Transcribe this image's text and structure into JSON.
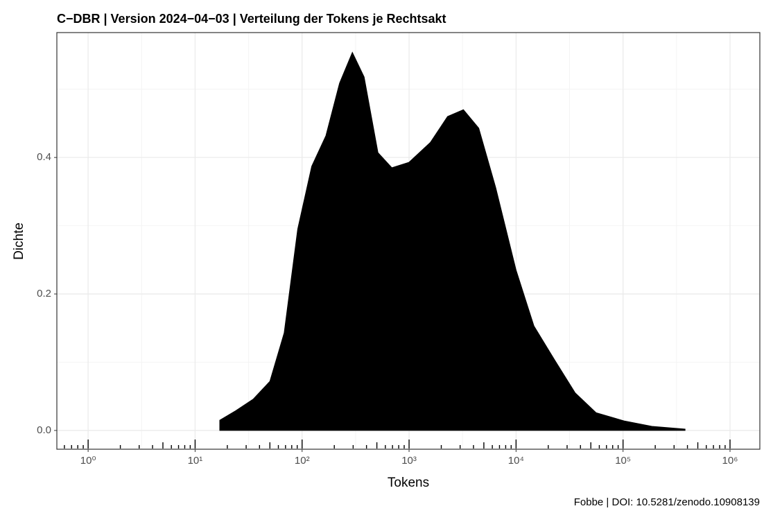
{
  "chart_data": {
    "type": "density",
    "title": "C−DBR | Version 2024−04−03 | Verteilung der Tokens je Rechtsakt",
    "x_label": "Tokens",
    "y_label": "Dichte",
    "caption": "Fobbe | DOI: 10.5281/zenodo.10908139",
    "x": [
      17,
      24,
      35,
      50,
      68,
      91,
      123,
      167,
      224,
      295,
      380,
      512,
      690,
      1000,
      1580,
      2290,
      3220,
      4480,
      6450,
      10000,
      14700,
      23000,
      35700,
      56000,
      102000,
      186000,
      380000
    ],
    "values": [
      0.015,
      0.029,
      0.046,
      0.072,
      0.143,
      0.295,
      0.387,
      0.432,
      0.509,
      0.554,
      0.518,
      0.407,
      0.385,
      0.393,
      0.422,
      0.46,
      0.47,
      0.443,
      0.356,
      0.235,
      0.153,
      0.103,
      0.055,
      0.026,
      0.014,
      0.006,
      0.002
    ],
    "color": "#000000",
    "x_log": true,
    "xlim": [
      0.51,
      1900000
    ],
    "xticks": [
      {
        "value": 1,
        "label": "10⁰"
      },
      {
        "value": 10,
        "label": "10¹"
      },
      {
        "value": 100,
        "label": "10²"
      },
      {
        "value": 1000,
        "label": "10³"
      },
      {
        "value": 10000,
        "label": "10⁴"
      },
      {
        "value": 100000,
        "label": "10⁵"
      },
      {
        "value": 1000000,
        "label": "10⁶"
      }
    ],
    "ylim": [
      -0.0275,
      0.583
    ],
    "yticks": [
      {
        "value": 0,
        "label": "0.0"
      },
      0.2,
      0.4
    ],
    "grid": true
  }
}
